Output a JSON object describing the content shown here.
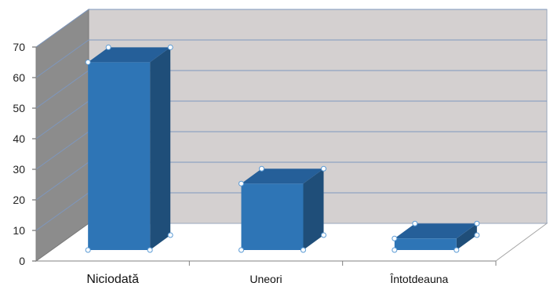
{
  "chart_data": {
    "type": "bar",
    "variant": "3d-column",
    "title": "",
    "xlabel": "",
    "ylabel": "",
    "categories": [
      "Niciodată",
      "Uneori",
      "Întotdeauna"
    ],
    "values": [
      65,
      23,
      4
    ],
    "ylim": [
      0,
      70
    ],
    "yticks": [
      0,
      10,
      20,
      30,
      40,
      50,
      60,
      70
    ],
    "grid": true,
    "legend": "none"
  },
  "style": {
    "bar_front": "#2E75B6",
    "bar_top": "#255F99",
    "bar_side": "#1F4E79",
    "back_wall": "#D4D0D0",
    "side_wall": "#8C8C8C",
    "grid_line": "#7E97BE",
    "handle": "#5B9BD5"
  }
}
